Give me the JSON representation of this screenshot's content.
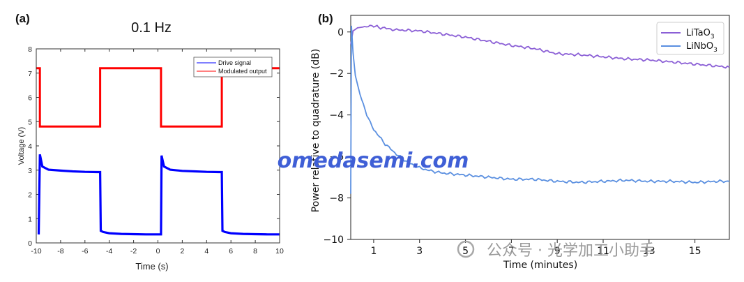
{
  "chart_data": [
    {
      "panel": "(a)",
      "type": "line",
      "title": "0.1 Hz",
      "xlabel": "Time (s)",
      "ylabel": "Voltage (V)",
      "xlim": [
        -10,
        10
      ],
      "ylim": [
        0,
        8
      ],
      "xticks": [
        -10,
        -8,
        -6,
        -4,
        -2,
        0,
        2,
        4,
        6,
        8,
        10
      ],
      "yticks": [
        0,
        1,
        2,
        3,
        4,
        5,
        6,
        7,
        8
      ],
      "legend_position": "top-right",
      "series": [
        {
          "name": "Drive signal",
          "color": "#0000ff",
          "x": [
            -9.8,
            -9.7,
            -9.5,
            -9,
            -8,
            -7,
            -6,
            -5,
            -4.75,
            -4.7,
            -4.5,
            -4,
            -3,
            -2,
            -1,
            0,
            0.25,
            0.3,
            0.5,
            1,
            2,
            3,
            4,
            5,
            5.25,
            5.3,
            5.5,
            6,
            7,
            8,
            9,
            10
          ],
          "values": [
            0.35,
            3.65,
            3.15,
            3.02,
            2.98,
            2.95,
            2.93,
            2.92,
            2.92,
            0.5,
            0.45,
            0.4,
            0.37,
            0.36,
            0.35,
            0.35,
            0.35,
            3.6,
            3.15,
            3.02,
            2.97,
            2.95,
            2.93,
            2.92,
            2.92,
            0.5,
            0.45,
            0.4,
            0.37,
            0.36,
            0.35,
            0.35
          ]
        },
        {
          "name": "Modulated output",
          "color": "#ff0000",
          "x": [
            -10,
            -9.7,
            -9.7,
            -4.75,
            -4.75,
            0.25,
            0.25,
            5.25,
            5.25,
            10
          ],
          "values": [
            7.2,
            7.2,
            4.8,
            4.8,
            7.2,
            7.2,
            4.8,
            4.8,
            7.2,
            7.2
          ]
        }
      ]
    },
    {
      "panel": "(b)",
      "type": "line",
      "xlabel": "Time (minutes)",
      "ylabel": "Power relative to quadrature (dB)",
      "xlim": [
        0,
        16.5
      ],
      "ylim": [
        -10,
        0.8
      ],
      "xticks": [
        1,
        3,
        5,
        7,
        9,
        11,
        13,
        15
      ],
      "yticks": [
        0,
        -2,
        -4,
        -6,
        -8,
        -10
      ],
      "legend_position": "top-right",
      "series": [
        {
          "name": "LiTaO3",
          "label_base": "LiTaO",
          "label_sub": "3",
          "color": "#8b5fd6",
          "x": [
            0,
            0.1,
            0.3,
            0.6,
            1.0,
            1.3,
            2,
            3,
            4,
            5,
            6,
            7,
            8,
            9,
            10,
            11,
            12,
            13,
            14,
            15,
            16,
            16.5
          ],
          "values": [
            -0.6,
            0.05,
            0.2,
            0.25,
            0.3,
            0.2,
            0.1,
            0.05,
            -0.1,
            -0.25,
            -0.45,
            -0.65,
            -0.8,
            -1.05,
            -1.1,
            -1.2,
            -1.3,
            -1.35,
            -1.45,
            -1.55,
            -1.65,
            -1.7
          ]
        },
        {
          "name": "LiNbO3",
          "label_base": "LiNbO",
          "label_sub": "3",
          "color": "#5a8fe0",
          "x": [
            0,
            0.03,
            0.1,
            0.2,
            0.4,
            0.7,
            1.0,
            1.5,
            2,
            2.5,
            3,
            3.5,
            4,
            5,
            6,
            7,
            8,
            9,
            10,
            11,
            12,
            13,
            14,
            15,
            16,
            16.5
          ],
          "values": [
            -7.8,
            0.3,
            -1.0,
            -2.1,
            -3.0,
            -4.0,
            -4.7,
            -5.4,
            -5.9,
            -6.3,
            -6.55,
            -6.7,
            -6.8,
            -6.9,
            -7.0,
            -7.1,
            -7.1,
            -7.2,
            -7.25,
            -7.2,
            -7.15,
            -7.2,
            -7.2,
            -7.25,
            -7.2,
            -7.2
          ]
        }
      ]
    }
  ],
  "watermarks": {
    "site": "omedasemi.com",
    "wechat": "公众号 · 光学加工小助手"
  }
}
